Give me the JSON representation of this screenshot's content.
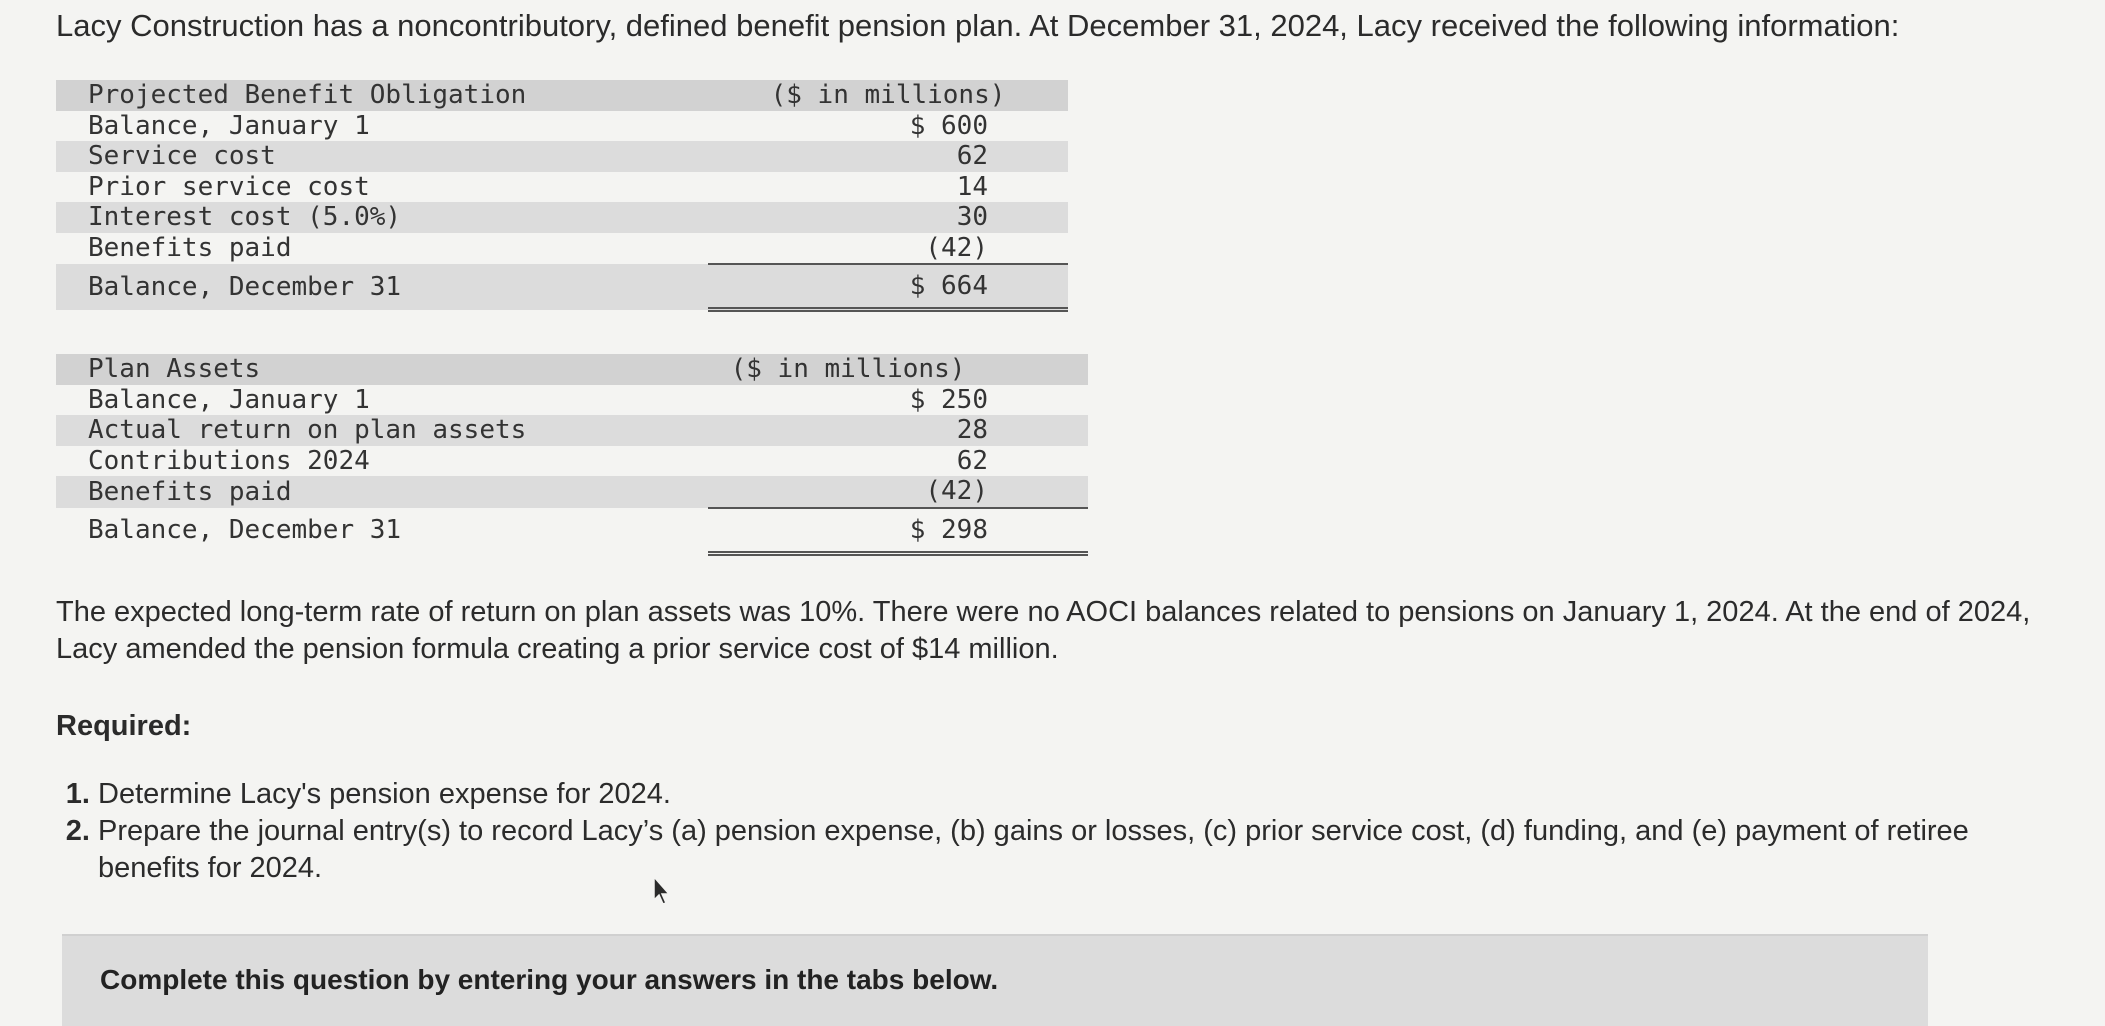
{
  "intro": "Lacy Construction has a noncontributory, defined benefit pension plan. At December 31, 2024, Lacy received the following information:",
  "pbo": {
    "header_label": "Projected Benefit Obligation",
    "header_unit": "($ in millions)",
    "rows": [
      {
        "label": "Balance, January 1",
        "value": "$ 600"
      },
      {
        "label": "Service cost",
        "value": "62"
      },
      {
        "label": "Prior service cost",
        "value": "14"
      },
      {
        "label": "Interest cost (5.0%)",
        "value": "30"
      },
      {
        "label": "Benefits paid",
        "value": "(42)"
      },
      {
        "label": "Balance, December 31",
        "value": "$ 664"
      }
    ]
  },
  "plan_assets": {
    "header_label": "Plan Assets",
    "header_unit": "($ in millions)",
    "rows": [
      {
        "label": "Balance, January 1",
        "value": "$ 250"
      },
      {
        "label": "Actual return on plan assets",
        "value": "28"
      },
      {
        "label": "Contributions 2024",
        "value": "62"
      },
      {
        "label": "Benefits paid",
        "value": "(42)"
      },
      {
        "label": "Balance, December 31",
        "value": "$ 298"
      }
    ]
  },
  "paragraph": "The expected long-term rate of return on plan assets was 10%. There were no AOCI balances related to pensions on January 1, 2024. At the end of 2024, Lacy amended the pension formula creating a prior service cost of $14 million.",
  "required_heading": "Required:",
  "requirements": [
    "Determine Lacy's pension expense for 2024.",
    "Prepare the journal entry(s) to record Lacy’s (a) pension expense, (b) gains or losses, (c) prior service cost, (d) funding, and (e) payment of retiree benefits for 2024."
  ],
  "complete_instruction": "Complete this question by entering your answers in the tabs below."
}
